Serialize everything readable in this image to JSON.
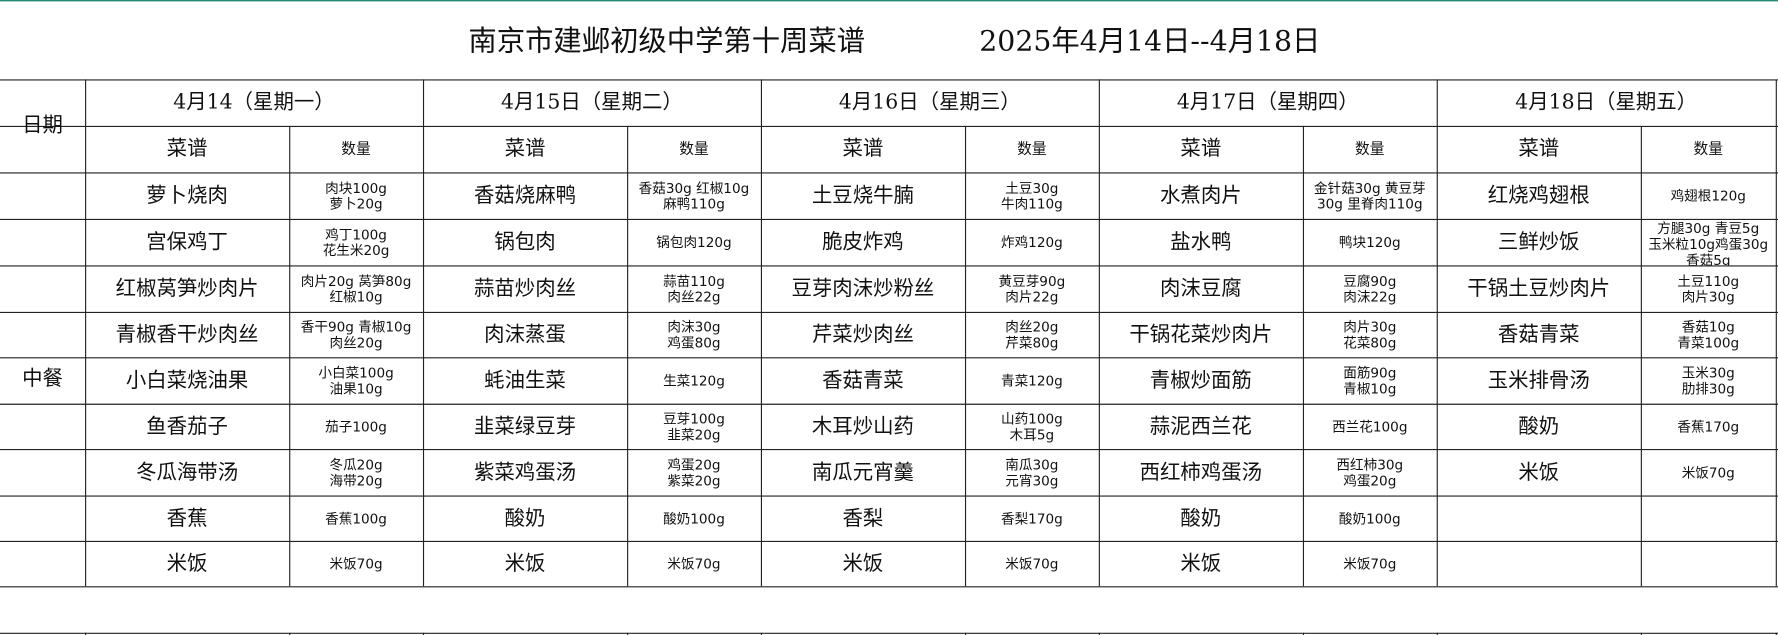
{
  "header": {
    "title": "南京市建邺初级中学第十周菜谱",
    "date_range": "2025年4月14日--4月18日"
  },
  "table": {
    "row_header": "日期",
    "meal": "中餐",
    "column_headers": {
      "dish": "菜谱",
      "amount": "数量"
    },
    "days": [
      {
        "date": "4月14（星期一）",
        "dishes": [
          {
            "name": "萝卜烧肉",
            "amount": [
              "肉块100g",
              "萝卜20g"
            ]
          },
          {
            "name": "宫保鸡丁",
            "amount": [
              "鸡丁100g",
              "花生米20g"
            ]
          },
          {
            "name": "红椒莴笋炒肉片",
            "amount": [
              "肉片20g 莴笋80g",
              "红椒10g"
            ]
          },
          {
            "name": "青椒香干炒肉丝",
            "amount": [
              "香干90g 青椒10g",
              "肉丝20g"
            ]
          },
          {
            "name": "小白菜烧油果",
            "amount": [
              "小白菜100g",
              "油果10g"
            ]
          },
          {
            "name": "鱼香茄子",
            "amount": [
              "茄子100g"
            ]
          },
          {
            "name": "冬瓜海带汤",
            "amount": [
              "冬瓜20g",
              "海带20g"
            ]
          },
          {
            "name": "香蕉",
            "amount": [
              "香蕉100g"
            ]
          },
          {
            "name": "米饭",
            "amount": [
              "米饭70g"
            ]
          }
        ]
      },
      {
        "date": "4月15日（星期二）",
        "dishes": [
          {
            "name": "香菇烧麻鸭",
            "amount": [
              "香菇30g 红椒10g",
              "麻鸭110g"
            ]
          },
          {
            "name": "锅包肉",
            "amount": [
              "锅包肉120g"
            ]
          },
          {
            "name": "蒜苗炒肉丝",
            "amount": [
              "蒜苗110g",
              "肉丝22g"
            ]
          },
          {
            "name": "肉沫蒸蛋",
            "amount": [
              "肉沫30g",
              "鸡蛋80g"
            ]
          },
          {
            "name": "蚝油生菜",
            "amount": [
              "生菜120g"
            ]
          },
          {
            "name": "韭菜绿豆芽",
            "amount": [
              "豆芽100g",
              "韭菜20g"
            ]
          },
          {
            "name": "紫菜鸡蛋汤",
            "amount": [
              "鸡蛋20g",
              "紫菜20g"
            ]
          },
          {
            "name": "酸奶",
            "amount": [
              "酸奶100g"
            ]
          },
          {
            "name": "米饭",
            "amount": [
              "米饭70g"
            ]
          }
        ]
      },
      {
        "date": "4月16日（星期三）",
        "dishes": [
          {
            "name": "土豆烧牛腩",
            "amount": [
              "土豆30g",
              "牛肉110g"
            ]
          },
          {
            "name": "脆皮炸鸡",
            "amount": [
              "炸鸡120g"
            ]
          },
          {
            "name": "豆芽肉沫炒粉丝",
            "amount": [
              "黄豆芽90g",
              "肉片22g"
            ]
          },
          {
            "name": "芹菜炒肉丝",
            "amount": [
              "肉丝20g",
              "芹菜80g"
            ]
          },
          {
            "name": "香菇青菜",
            "amount": [
              "青菜120g"
            ]
          },
          {
            "name": "木耳炒山药",
            "amount": [
              "山药100g",
              "木耳5g"
            ]
          },
          {
            "name": "南瓜元宵羹",
            "amount": [
              "南瓜30g",
              "元宵30g"
            ]
          },
          {
            "name": "香梨",
            "amount": [
              "香梨170g"
            ]
          },
          {
            "name": "米饭",
            "amount": [
              "米饭70g"
            ]
          }
        ]
      },
      {
        "date": "4月17日（星期四）",
        "dishes": [
          {
            "name": "水煮肉片",
            "amount": [
              "金针菇30g 黄豆芽",
              "30g 里脊肉110g"
            ]
          },
          {
            "name": "盐水鸭",
            "amount": [
              "鸭块120g"
            ]
          },
          {
            "name": "肉沫豆腐",
            "amount": [
              "豆腐90g",
              "肉沫22g"
            ]
          },
          {
            "name": "干锅花菜炒肉片",
            "amount": [
              "肉片30g",
              "花菜80g"
            ]
          },
          {
            "name": "青椒炒面筋",
            "amount": [
              "面筋90g",
              "青椒10g"
            ]
          },
          {
            "name": "蒜泥西兰花",
            "amount": [
              "西兰花100g"
            ]
          },
          {
            "name": "西红柿鸡蛋汤",
            "amount": [
              "西红柿30g",
              "鸡蛋20g"
            ]
          },
          {
            "name": "酸奶",
            "amount": [
              "酸奶100g"
            ]
          },
          {
            "name": "米饭",
            "amount": [
              "米饭70g"
            ]
          }
        ]
      },
      {
        "date": "4月18日（星期五）",
        "dishes": [
          {
            "name": "红烧鸡翅根",
            "amount": [
              "鸡翅根120g"
            ]
          },
          {
            "name": "三鲜炒饭",
            "amount": [
              "方腿30g 青豆5g",
              "玉米粒10g鸡蛋30g",
              "香菇5g"
            ]
          },
          {
            "name": "干锅土豆炒肉片",
            "amount": [
              "土豆110g",
              "肉片30g"
            ]
          },
          {
            "name": "香菇青菜",
            "amount": [
              "香菇10g",
              "青菜100g"
            ]
          },
          {
            "name": "玉米排骨汤",
            "amount": [
              "玉米30g",
              "肋排30g"
            ]
          },
          {
            "name": "酸奶",
            "amount": [
              "香蕉170g"
            ]
          },
          {
            "name": "米饭",
            "amount": [
              "米饭70g"
            ]
          }
        ]
      }
    ]
  }
}
